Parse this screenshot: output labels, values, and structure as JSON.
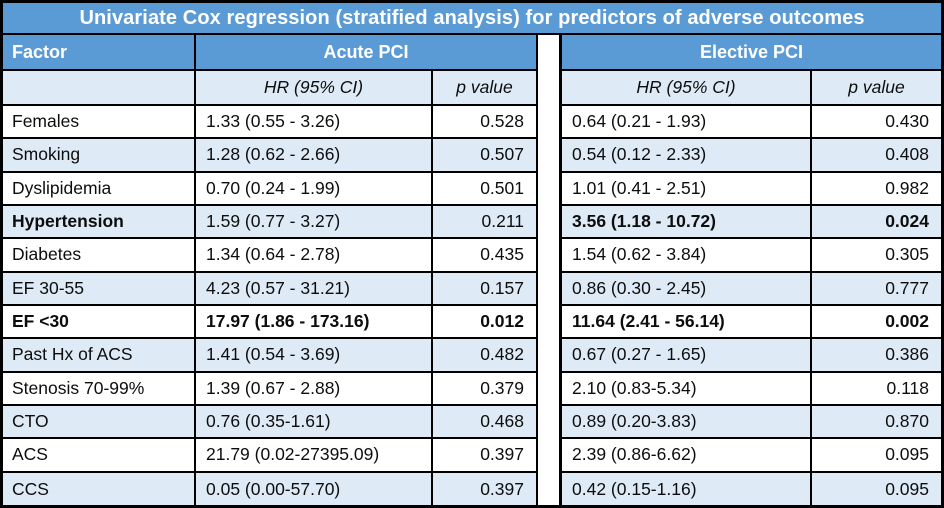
{
  "chart_data": {
    "type": "table",
    "title": "Univariate Cox regression (stratified analysis) for predictors of adverse outcomes",
    "group_headers": {
      "factor": "Factor",
      "acute": "Acute PCI",
      "elective": "Elective PCI"
    },
    "sub_headers": {
      "hr": "HR (95% CI)",
      "p": "p value"
    },
    "rows": [
      {
        "factor": "Females",
        "factor_bold": false,
        "acute_hr": "1.33 (0.55 - 3.26)",
        "acute_p": "0.528",
        "acute_bold": false,
        "elective_hr": "0.64 (0.21 - 1.93)",
        "elective_p": "0.430",
        "elective_bold": false
      },
      {
        "factor": "Smoking",
        "factor_bold": false,
        "acute_hr": "1.28 (0.62 - 2.66)",
        "acute_p": "0.507",
        "acute_bold": false,
        "elective_hr": "0.54 (0.12 - 2.33)",
        "elective_p": "0.408",
        "elective_bold": false
      },
      {
        "factor": "Dyslipidemia",
        "factor_bold": false,
        "acute_hr": "0.70 (0.24 - 1.99)",
        "acute_p": "0.501",
        "acute_bold": false,
        "elective_hr": "1.01 (0.41 - 2.51)",
        "elective_p": "0.982",
        "elective_bold": false
      },
      {
        "factor": "Hypertension",
        "factor_bold": true,
        "acute_hr": "1.59 (0.77 - 3.27)",
        "acute_p": "0.211",
        "acute_bold": false,
        "elective_hr": "3.56 (1.18 - 10.72)",
        "elective_p": "0.024",
        "elective_bold": true
      },
      {
        "factor": "Diabetes",
        "factor_bold": false,
        "acute_hr": "1.34 (0.64 - 2.78)",
        "acute_p": "0.435",
        "acute_bold": false,
        "elective_hr": "1.54 (0.62 - 3.84)",
        "elective_p": "0.305",
        "elective_bold": false
      },
      {
        "factor": "EF 30-55",
        "factor_bold": false,
        "acute_hr": "4.23 (0.57 - 31.21)",
        "acute_p": "0.157",
        "acute_bold": false,
        "elective_hr": "0.86 (0.30 - 2.45)",
        "elective_p": "0.777",
        "elective_bold": false
      },
      {
        "factor": "EF <30",
        "factor_bold": true,
        "acute_hr": "17.97 (1.86 - 173.16)",
        "acute_p": "0.012",
        "acute_bold": true,
        "elective_hr": "11.64 (2.41 - 56.14)",
        "elective_p": "0.002",
        "elective_bold": true
      },
      {
        "factor": "Past Hx of ACS",
        "factor_bold": false,
        "acute_hr": "1.41 (0.54 - 3.69)",
        "acute_p": "0.482",
        "acute_bold": false,
        "elective_hr": "0.67 (0.27 - 1.65)",
        "elective_p": "0.386",
        "elective_bold": false
      },
      {
        "factor": "Stenosis 70-99%",
        "factor_bold": false,
        "acute_hr": "1.39 (0.67 - 2.88)",
        "acute_p": "0.379",
        "acute_bold": false,
        "elective_hr": "2.10 (0.83-5.34)",
        "elective_p": "0.118",
        "elective_bold": false
      },
      {
        "factor": "CTO",
        "factor_bold": false,
        "acute_hr": "0.76 (0.35-1.61)",
        "acute_p": "0.468",
        "acute_bold": false,
        "elective_hr": "0.89 (0.20-3.83)",
        "elective_p": "0.870",
        "elective_bold": false
      },
      {
        "factor": "ACS",
        "factor_bold": false,
        "acute_hr": "21.79 (0.02-27395.09)",
        "acute_p": "0.397",
        "acute_bold": false,
        "elective_hr": "2.39 (0.86-6.62)",
        "elective_p": "0.095",
        "elective_bold": false
      },
      {
        "factor": "CCS",
        "factor_bold": false,
        "acute_hr": "0.05 (0.00-57.70)",
        "acute_p": "0.397",
        "acute_bold": false,
        "elective_hr": "0.42 (0.15-1.16)",
        "elective_p": "0.095",
        "elective_bold": false
      }
    ],
    "colors": {
      "header_blue": "#5B9BD5",
      "row_light_blue": "#DEEAF6",
      "row_white": "#FFFFFF",
      "border_black": "#000000",
      "title_text": "#FFFFFF"
    },
    "layout_hints": {
      "striped_rows": true,
      "bold_means_significant": true,
      "two_column_groups_separated_by_gap": true
    }
  }
}
